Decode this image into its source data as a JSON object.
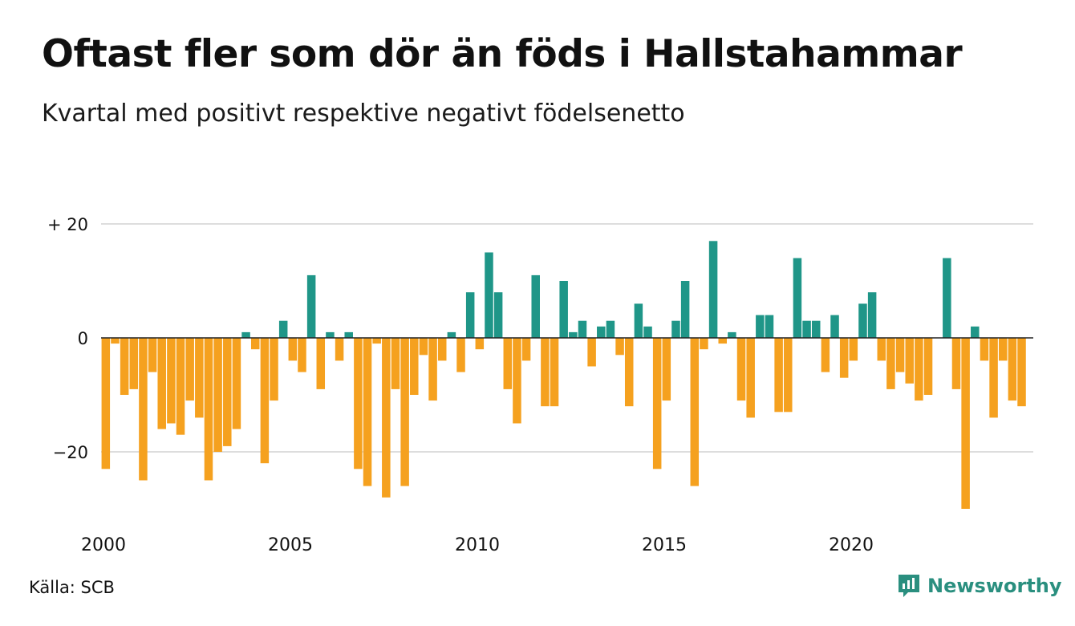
{
  "title": "Oftast fler som dör än föds i Hallstahammar",
  "subtitle": "Kvartal med positivt respektive negativt födelsenetto",
  "source": "Källa: SCB",
  "brand": "Newsworthy",
  "colors": {
    "positive": "#1f9688",
    "negative": "#f5a11f",
    "grid": "#dddddd",
    "brand": "#2a8f7f"
  },
  "chart_data": {
    "type": "bar",
    "x_start": "2000 Q1",
    "x_frequency": "quarterly",
    "ylim": [
      -30,
      20
    ],
    "yticks": [
      20,
      0,
      -20
    ],
    "ytick_labels": [
      "+ 20",
      "0",
      "−20"
    ],
    "xtick_years": [
      2000,
      2005,
      2010,
      2015,
      2020
    ],
    "values": [
      -23,
      -1,
      -10,
      -9,
      -25,
      -6,
      -16,
      -15,
      -17,
      -11,
      -14,
      -25,
      -20,
      -19,
      -16,
      1,
      -2,
      -22,
      -11,
      3,
      -4,
      -6,
      11,
      -9,
      1,
      -4,
      1,
      -23,
      -26,
      -1,
      -28,
      -9,
      -26,
      -10,
      -3,
      -11,
      -4,
      1,
      -6,
      8,
      -2,
      15,
      8,
      -9,
      -15,
      -4,
      11,
      -12,
      -12,
      10,
      1,
      3,
      -5,
      2,
      3,
      -3,
      -12,
      6,
      2,
      -23,
      -11,
      3,
      10,
      -26,
      -2,
      17,
      -1,
      1,
      -11,
      -14,
      4,
      4,
      -13,
      -13,
      14,
      3,
      3,
      -6,
      4,
      -7,
      -4,
      6,
      8,
      -4,
      -9,
      -6,
      -8,
      -11,
      -10,
      0,
      14,
      -9,
      -30,
      2,
      -4,
      -14,
      -4,
      -11,
      -12
    ]
  }
}
